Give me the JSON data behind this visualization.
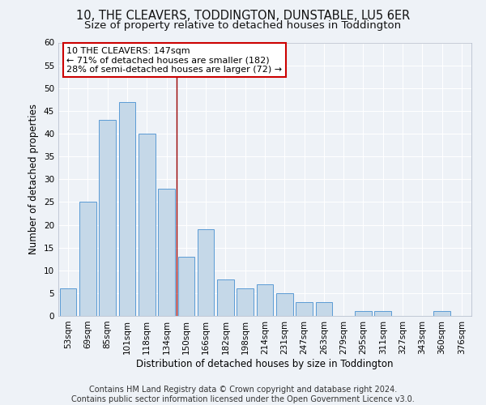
{
  "title": "10, THE CLEAVERS, TODDINGTON, DUNSTABLE, LU5 6ER",
  "subtitle": "Size of property relative to detached houses in Toddington",
  "xlabel": "Distribution of detached houses by size in Toddington",
  "ylabel": "Number of detached properties",
  "categories": [
    "53sqm",
    "69sqm",
    "85sqm",
    "101sqm",
    "118sqm",
    "134sqm",
    "150sqm",
    "166sqm",
    "182sqm",
    "198sqm",
    "214sqm",
    "231sqm",
    "247sqm",
    "263sqm",
    "279sqm",
    "295sqm",
    "311sqm",
    "327sqm",
    "343sqm",
    "360sqm",
    "376sqm"
  ],
  "values": [
    6,
    25,
    43,
    47,
    40,
    28,
    13,
    19,
    8,
    6,
    7,
    5,
    3,
    3,
    0,
    1,
    1,
    0,
    0,
    1,
    0
  ],
  "bar_color": "#c5d8e8",
  "bar_edge_color": "#5b9bd5",
  "property_line_x": 5.5,
  "property_label": "10 THE CLEAVERS: 147sqm",
  "annotation_line1": "← 71% of detached houses are smaller (182)",
  "annotation_line2": "28% of semi-detached houses are larger (72) →",
  "annotation_box_color": "#ffffff",
  "annotation_box_edge_color": "#cc0000",
  "line_color": "#990000",
  "ylim": [
    0,
    60
  ],
  "yticks": [
    0,
    5,
    10,
    15,
    20,
    25,
    30,
    35,
    40,
    45,
    50,
    55,
    60
  ],
  "footnote1": "Contains HM Land Registry data © Crown copyright and database right 2024.",
  "footnote2": "Contains public sector information licensed under the Open Government Licence v3.0.",
  "background_color": "#eef2f7",
  "grid_color": "#ffffff",
  "title_fontsize": 10.5,
  "subtitle_fontsize": 9.5,
  "axis_label_fontsize": 8.5,
  "tick_fontsize": 7.5,
  "annotation_fontsize": 8,
  "footnote_fontsize": 7
}
